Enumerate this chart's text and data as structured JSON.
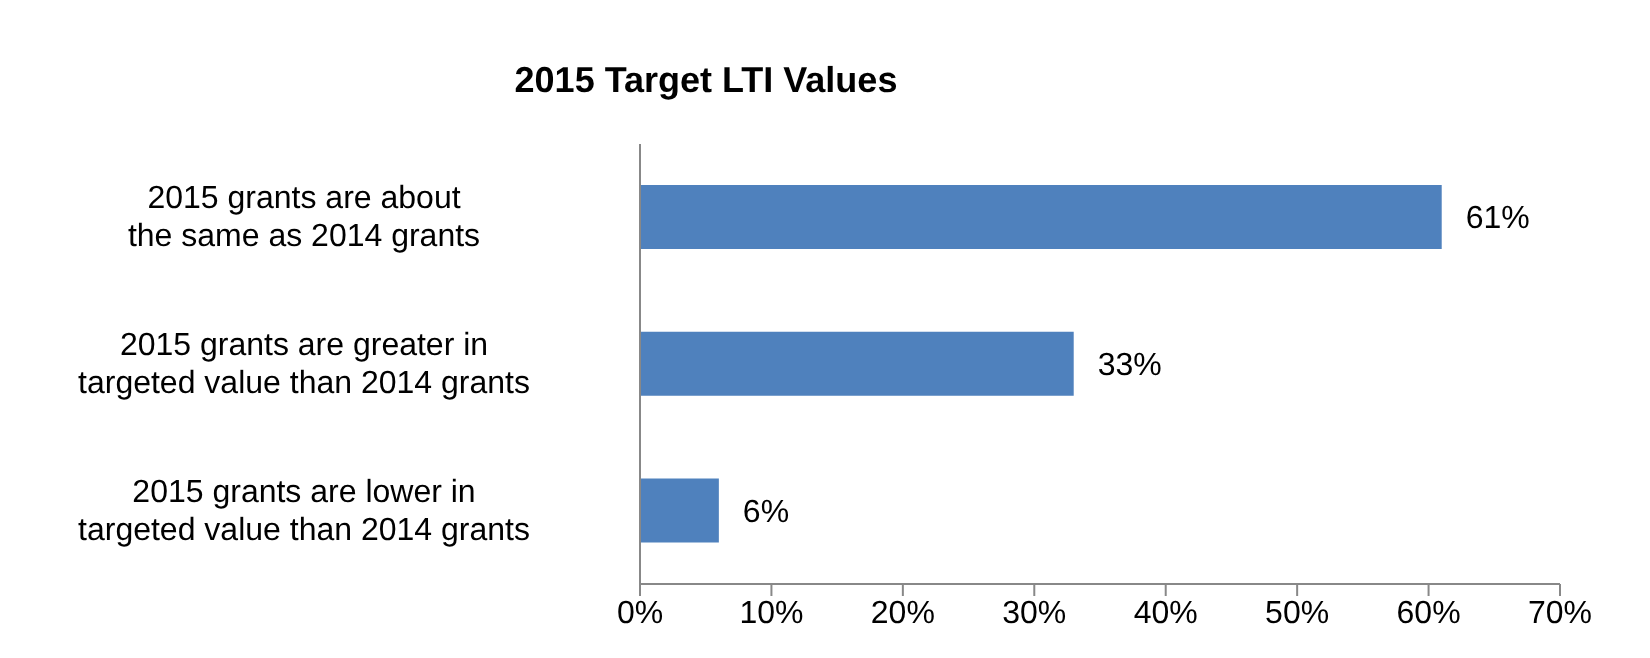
{
  "chart_data": {
    "type": "bar",
    "orientation": "horizontal",
    "title": "2015 Target LTI Values",
    "categories": [
      "2015 grants are about the same as 2014 grants",
      "2015 grants are greater in targeted value than 2014 grants",
      "2015 grants are lower in targeted value than 2014 grants"
    ],
    "values": [
      61,
      33,
      6
    ],
    "color": "#4f81bd",
    "value_labels": [
      "61%",
      "33%",
      "6%"
    ],
    "xlim": [
      0,
      70
    ],
    "xticks": [
      {
        "value": 0,
        "label": "0%"
      },
      {
        "value": 10,
        "label": "10%"
      },
      {
        "value": 20,
        "label": "20%"
      },
      {
        "value": 30,
        "label": "30%"
      },
      {
        "value": 40,
        "label": "40%"
      },
      {
        "value": 50,
        "label": "50%"
      },
      {
        "value": 60,
        "label": "60%"
      },
      {
        "value": 70,
        "label": "70%"
      }
    ],
    "grid": false,
    "legend": false
  }
}
